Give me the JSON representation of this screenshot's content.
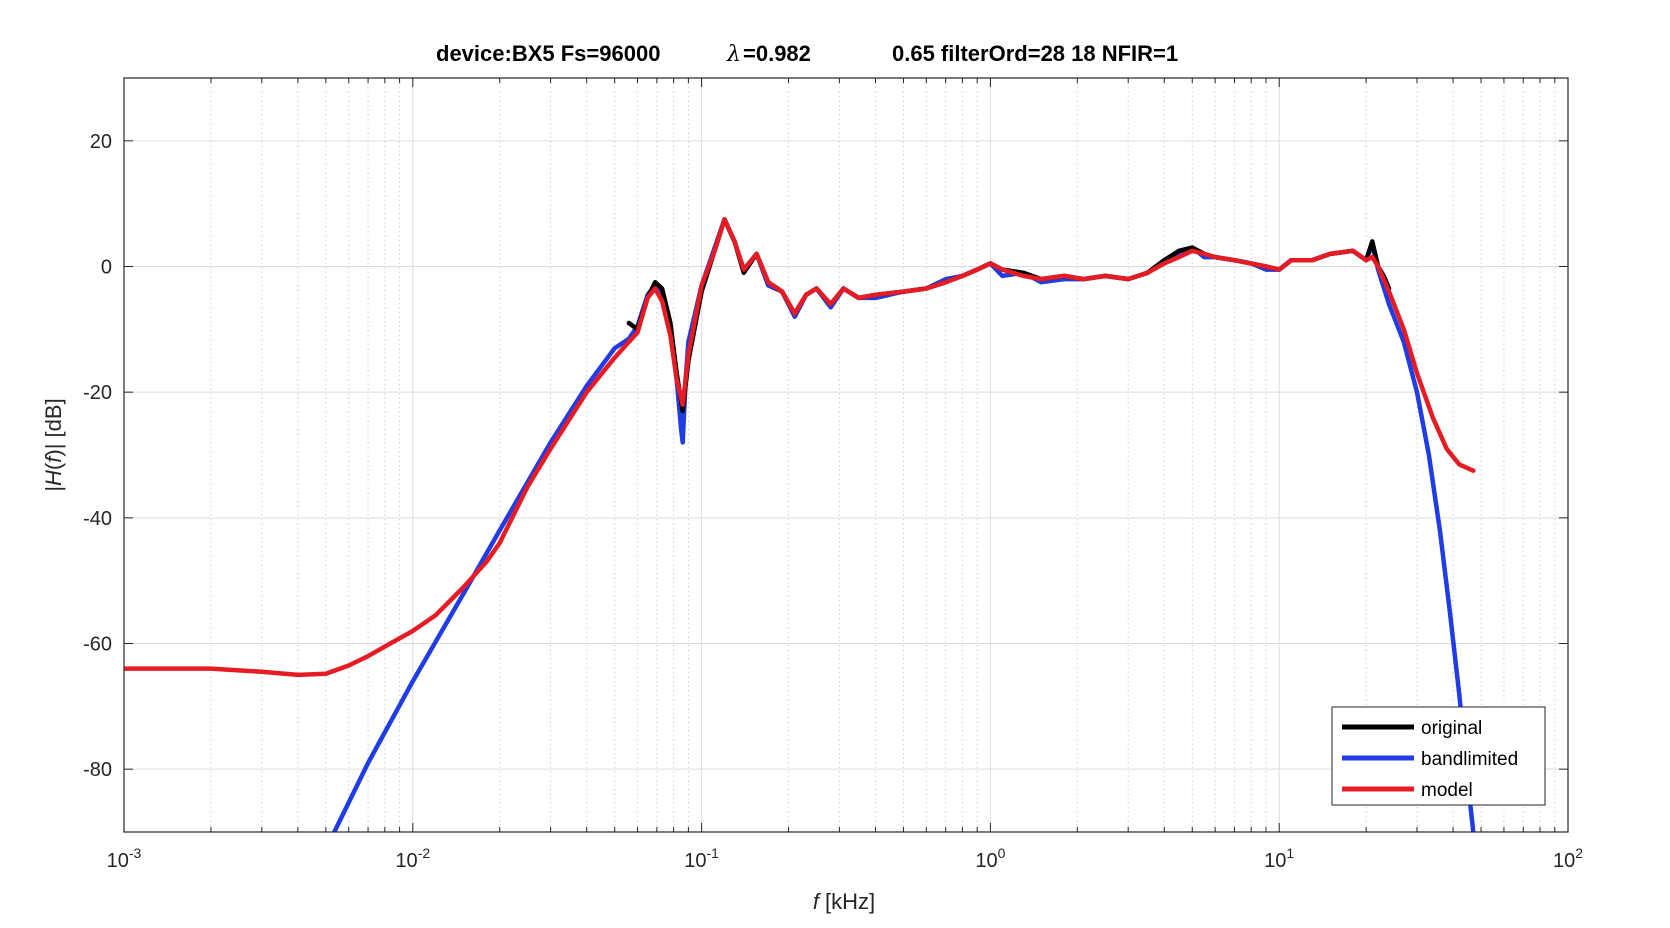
{
  "chart_data": {
    "type": "line",
    "title": {
      "part1": "device:BX5 Fs=96000",
      "lambda": "λ",
      "part2": "=0.982",
      "part3": "0.65 filterOrd=28  18 NFIR=1"
    },
    "xlabel": {
      "var": "f",
      "unit": " [kHz]"
    },
    "ylabel": {
      "pre": "|",
      "var": "H",
      "mid": "(",
      "var2": "f",
      "post": ")| [dB]"
    },
    "x_scale": "log",
    "xlim": [
      0.001,
      100
    ],
    "ylim": [
      -90,
      30
    ],
    "grid": true,
    "legend_position": "bottom-right",
    "x_ticks": [
      {
        "value": 0.001,
        "base": "10",
        "exp": "-3"
      },
      {
        "value": 0.01,
        "base": "10",
        "exp": "-2"
      },
      {
        "value": 0.1,
        "base": "10",
        "exp": "-1"
      },
      {
        "value": 1,
        "base": "10",
        "exp": "0"
      },
      {
        "value": 10,
        "base": "10",
        "exp": "1"
      },
      {
        "value": 100,
        "base": "10",
        "exp": "2"
      }
    ],
    "y_ticks": [
      {
        "value": 20,
        "label": "20"
      },
      {
        "value": 0,
        "label": "0"
      },
      {
        "value": -20,
        "label": "-20"
      },
      {
        "value": -40,
        "label": "-40"
      },
      {
        "value": -60,
        "label": "-60"
      },
      {
        "value": -80,
        "label": "-80"
      }
    ],
    "series": [
      {
        "name": "original",
        "color": "#000000",
        "x": [
          0.056,
          0.06,
          0.065,
          0.069,
          0.073,
          0.078,
          0.082,
          0.086,
          0.09,
          0.1,
          0.11,
          0.12,
          0.13,
          0.14,
          0.155,
          0.17,
          0.19,
          0.21,
          0.23,
          0.25,
          0.28,
          0.31,
          0.35,
          0.4,
          0.5,
          0.6,
          0.7,
          0.8,
          0.9,
          1.0,
          1.1,
          1.3,
          1.5,
          1.8,
          2.1,
          2.5,
          3.0,
          3.5,
          4.0,
          4.5,
          5.0,
          5.5,
          6.0,
          7.0,
          8.0,
          9.0,
          10.0,
          11.0,
          13.0,
          15.0,
          18.0,
          20.0,
          21.0,
          22.0,
          23.0,
          24.0
        ],
        "y": [
          -9,
          -10,
          -5,
          -2.5,
          -3.5,
          -9,
          -17,
          -23,
          -15,
          -4,
          2,
          7.5,
          4,
          -1,
          2,
          -2.5,
          -4,
          -7.5,
          -4.5,
          -3.5,
          -6,
          -3.5,
          -5,
          -4.5,
          -4,
          -3.5,
          -2.5,
          -1.5,
          -0.5,
          0.5,
          -0.5,
          -1,
          -2,
          -1.5,
          -2,
          -1.5,
          -2,
          -1,
          1,
          2.5,
          3,
          2,
          1.5,
          1,
          0.5,
          0,
          -0.5,
          1,
          1,
          2,
          2.5,
          1,
          4,
          0,
          -1.5,
          -3.5
        ]
      },
      {
        "name": "bandlimited",
        "color": "#1f3ce6",
        "x": [
          0.00535,
          0.007,
          0.01,
          0.015,
          0.02,
          0.03,
          0.04,
          0.05,
          0.056,
          0.06,
          0.065,
          0.069,
          0.073,
          0.078,
          0.082,
          0.085,
          0.086,
          0.088,
          0.09,
          0.1,
          0.11,
          0.12,
          0.13,
          0.14,
          0.155,
          0.17,
          0.19,
          0.21,
          0.23,
          0.25,
          0.28,
          0.31,
          0.35,
          0.4,
          0.5,
          0.6,
          0.7,
          0.8,
          0.9,
          1.0,
          1.1,
          1.3,
          1.5,
          1.8,
          2.1,
          2.5,
          3.0,
          3.5,
          4.0,
          4.5,
          5.0,
          5.5,
          6.0,
          7.0,
          8.0,
          9.0,
          10.0,
          11.0,
          13.0,
          15.0,
          18.0,
          20.0,
          21.0,
          22.0,
          24.0,
          27.0,
          30.0,
          33.0,
          36.0,
          39.0,
          42.0,
          45.0,
          47.0
        ],
        "y": [
          -90,
          -79,
          -66,
          -52,
          -42,
          -28,
          -19,
          -13,
          -11.5,
          -9.5,
          -4.5,
          -3,
          -4,
          -10,
          -18,
          -26,
          -28,
          -18,
          -12,
          -3,
          2.5,
          7.5,
          4,
          -0.5,
          2,
          -3,
          -4,
          -8,
          -4.5,
          -3.5,
          -6.5,
          -3.5,
          -5,
          -5,
          -4,
          -3.5,
          -2,
          -1.5,
          -0.5,
          0.5,
          -1.5,
          -1,
          -2.5,
          -2,
          -2,
          -1.5,
          -2,
          -1,
          1,
          2,
          3,
          1.5,
          1.5,
          1,
          0.5,
          -0.5,
          -0.5,
          1,
          1,
          2,
          2.5,
          1,
          3.5,
          -0.5,
          -6,
          -12,
          -20,
          -30,
          -42,
          -55,
          -68,
          -82,
          -90
        ]
      },
      {
        "name": "model",
        "color": "#e61c24",
        "x": [
          0.001,
          0.002,
          0.003,
          0.004,
          0.005,
          0.006,
          0.007,
          0.008,
          0.01,
          0.012,
          0.015,
          0.018,
          0.02,
          0.025,
          0.03,
          0.04,
          0.05,
          0.056,
          0.06,
          0.065,
          0.069,
          0.073,
          0.078,
          0.082,
          0.086,
          0.09,
          0.1,
          0.11,
          0.12,
          0.13,
          0.14,
          0.155,
          0.17,
          0.19,
          0.21,
          0.23,
          0.25,
          0.28,
          0.31,
          0.35,
          0.4,
          0.5,
          0.6,
          0.7,
          0.8,
          0.9,
          1.0,
          1.1,
          1.3,
          1.5,
          1.8,
          2.1,
          2.5,
          3.0,
          3.5,
          4.0,
          4.5,
          5.0,
          5.5,
          6.0,
          7.0,
          8.0,
          9.0,
          10.0,
          11.0,
          13.0,
          15.0,
          18.0,
          20.0,
          21.0,
          22.0,
          24.0,
          27.0,
          30.0,
          34.0,
          38.0,
          42.0,
          47.0
        ],
        "y": [
          -64,
          -64,
          -64.5,
          -65,
          -64.8,
          -63.5,
          -62,
          -60.5,
          -58,
          -55.5,
          -51,
          -47,
          -44,
          -35,
          -29,
          -20,
          -14.5,
          -12,
          -10.5,
          -5,
          -3.5,
          -5.5,
          -11,
          -18,
          -22,
          -14,
          -3,
          2,
          7.5,
          4,
          -0.5,
          2,
          -2.5,
          -4,
          -7.5,
          -4.5,
          -3.5,
          -6,
          -3.5,
          -5,
          -4.5,
          -4,
          -3.5,
          -2.5,
          -1.5,
          -0.5,
          0.5,
          -0.5,
          -1.5,
          -2,
          -1.5,
          -2,
          -1.5,
          -2,
          -1,
          0.5,
          1.5,
          2.5,
          2,
          1.5,
          1,
          0.5,
          0,
          -0.5,
          1,
          1,
          2,
          2.5,
          1,
          1.5,
          0,
          -4,
          -10,
          -17,
          -24,
          -29,
          -31.5,
          -32.5
        ]
      }
    ]
  }
}
